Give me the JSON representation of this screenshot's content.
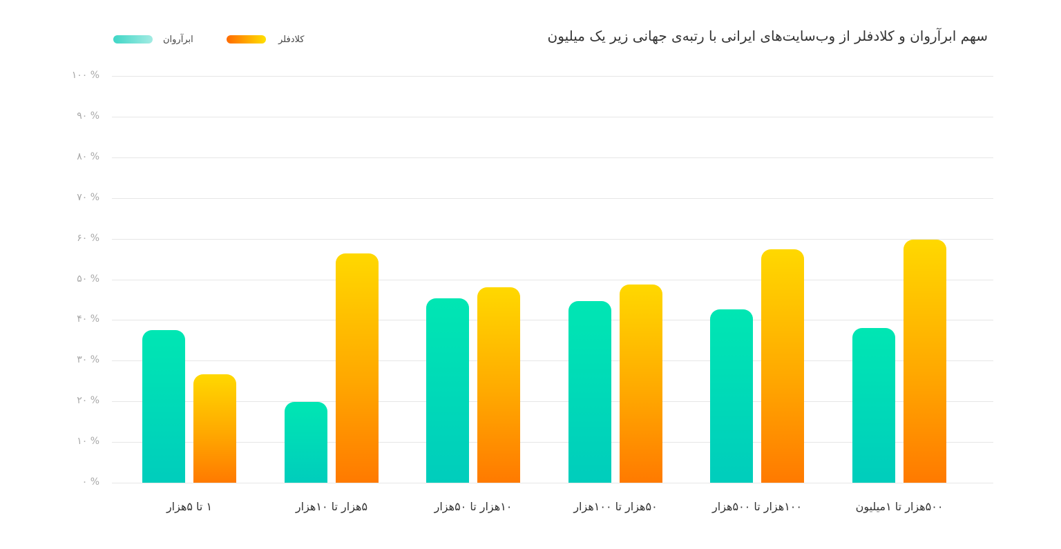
{
  "chart_data": {
    "type": "bar",
    "title": "سهم ابرآروان و کلادفلر از وب‌سایت‌های ایرانی با رتبه‌ی جهانی زیر یک میلیون",
    "xlabel": "",
    "ylabel": "",
    "ylim": [
      0,
      100
    ],
    "grid": true,
    "legend_position": "top-left",
    "categories": [
      "۱ تا ۵هزار",
      "۵هزار تا ۱۰هزار",
      "۱۰هزار تا ۵۰هزار",
      "۵۰هزار تا ۱۰۰هزار",
      "۱۰۰هزار تا ۵۰۰هزار",
      "۵۰۰هزار تا ۱میلیون"
    ],
    "series": [
      {
        "name": "ابرآروان",
        "color": "#00dcb4",
        "values": [
          37.6,
          19.9,
          45.3,
          44.7,
          42.6,
          38.0
        ]
      },
      {
        "name": "کلادفلر",
        "color": "#ffa800",
        "values": [
          26.7,
          56.4,
          48.0,
          48.7,
          57.4,
          59.8
        ]
      }
    ],
    "yticks": [
      "۰ %",
      "۱۰ %",
      "۲۰ %",
      "۳۰ %",
      "۴۰ %",
      "۵۰ %",
      "۶۰ %",
      "۷۰ %",
      "۸۰ %",
      "۹۰ %",
      "۱۰۰ %"
    ]
  },
  "legend": {
    "arvan": {
      "label": "ابرآروان"
    },
    "cloudflare": {
      "label": "کلادفلر"
    }
  }
}
